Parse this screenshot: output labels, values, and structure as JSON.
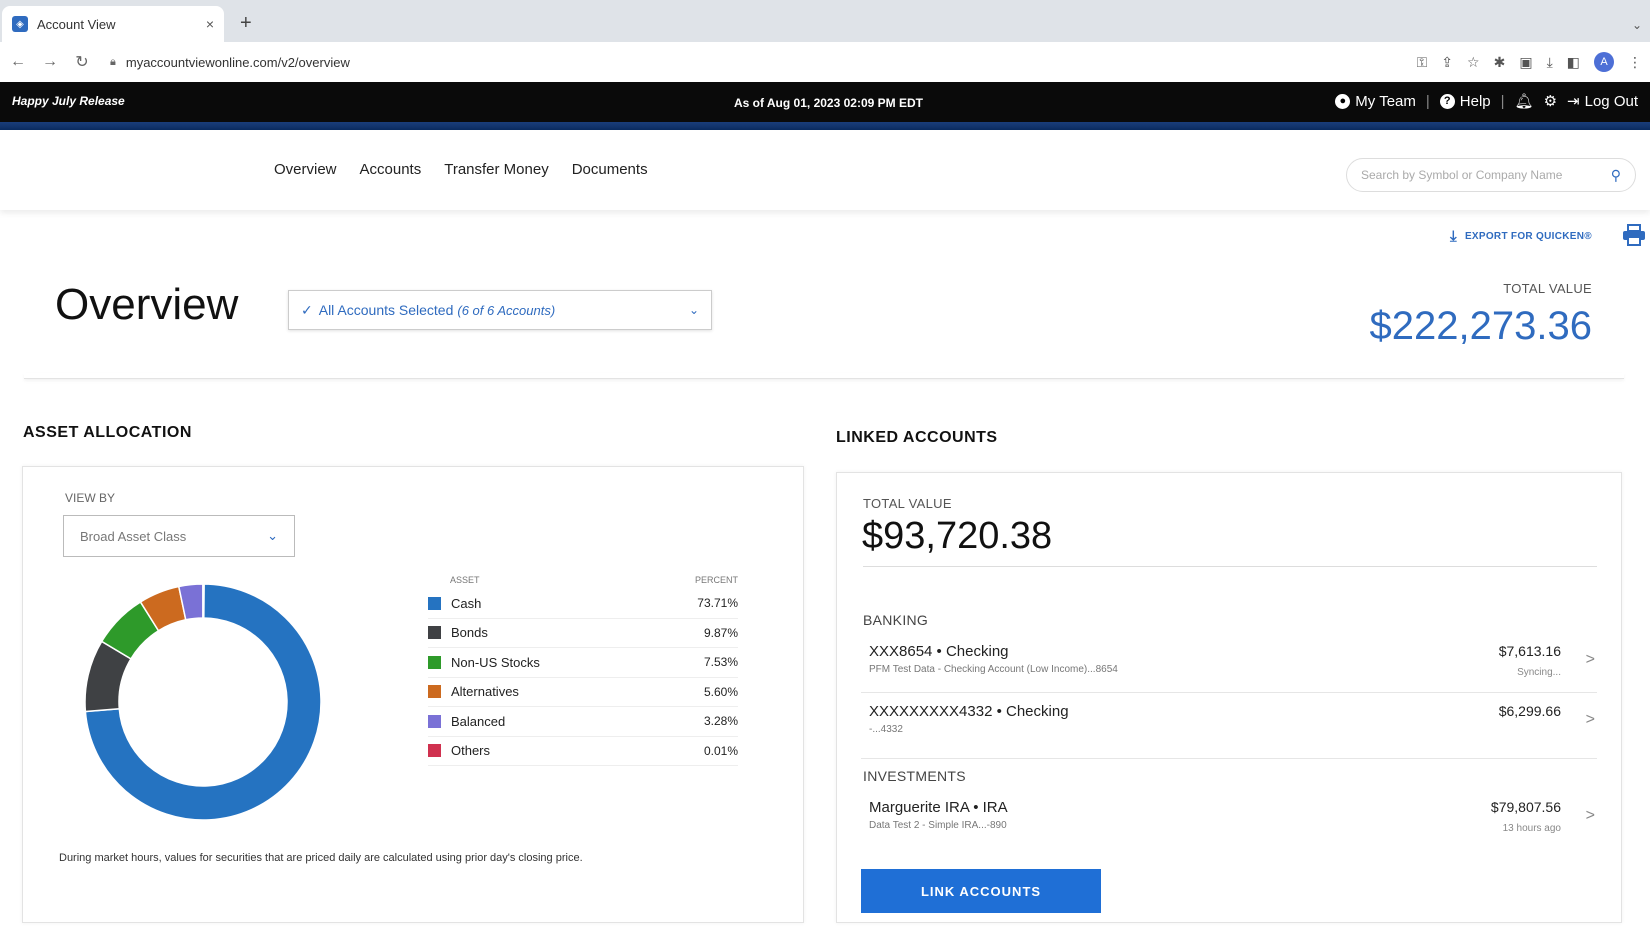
{
  "browser": {
    "tab_title": "Account View",
    "tab_close": "×",
    "new_tab": "+",
    "url": "myaccountviewonline.com/v2/overview",
    "avatar_letter": "A"
  },
  "appbar": {
    "release": "Happy July Release",
    "as_of": "As of Aug 01, 2023 02:09 PM EDT",
    "my_team": "My Team",
    "help": "Help",
    "logout": "Log Out",
    "separator": "|"
  },
  "nav": {
    "items": [
      "Overview",
      "Accounts",
      "Transfer Money",
      "Documents"
    ],
    "search_placeholder": "Search by Symbol or Company Name"
  },
  "export_label": "EXPORT FOR QUICKEN®",
  "overview": {
    "title": "Overview",
    "account_select": "All Accounts Selected",
    "account_select_count": "(6 of 6 Accounts)",
    "total_value_label": "TOTAL VALUE",
    "total_value": "$222,273.36"
  },
  "asset_allocation": {
    "title": "ASSET ALLOCATION",
    "view_by_label": "VIEW BY",
    "view_by_value": "Broad Asset Class",
    "asset_header": "ASSET",
    "percent_header": "PERCENT",
    "disclaimer": "During market hours, values for securities that are priced daily are calculated using prior day's closing price."
  },
  "chart_data": {
    "type": "pie",
    "donut": true,
    "categories": [
      "Cash",
      "Bonds",
      "Non-US Stocks",
      "Alternatives",
      "Balanced",
      "Others"
    ],
    "values": [
      73.71,
      9.87,
      7.53,
      5.6,
      3.28,
      0.01
    ],
    "labels": [
      "73.71%",
      "9.87%",
      "7.53%",
      "5.60%",
      "3.28%",
      "0.01%"
    ],
    "colors": [
      "#2573c1",
      "#3f4144",
      "#2e9a2a",
      "#cc6a1f",
      "#7a71d6",
      "#d0314f"
    ]
  },
  "linked_accounts": {
    "title": "LINKED ACCOUNTS",
    "total_value_label": "TOTAL VALUE",
    "total_value": "$93,720.38",
    "banking_label": "BANKING",
    "investments_label": "INVESTMENTS",
    "banking": [
      {
        "name": "XXX8654 • Checking",
        "sub": "PFM Test Data - Checking Account (Low Income)...8654",
        "balance": "$7,613.16",
        "status": "Syncing..."
      },
      {
        "name": "XXXXXXXXX4332 • Checking",
        "sub": "-...4332",
        "balance": "$6,299.66",
        "status": ""
      }
    ],
    "investments": [
      {
        "name": "Marguerite IRA • IRA",
        "sub": "Data Test 2 - Simple IRA...-890",
        "balance": "$79,807.56",
        "status": "13 hours ago"
      }
    ],
    "link_button": "LINK ACCOUNTS"
  }
}
